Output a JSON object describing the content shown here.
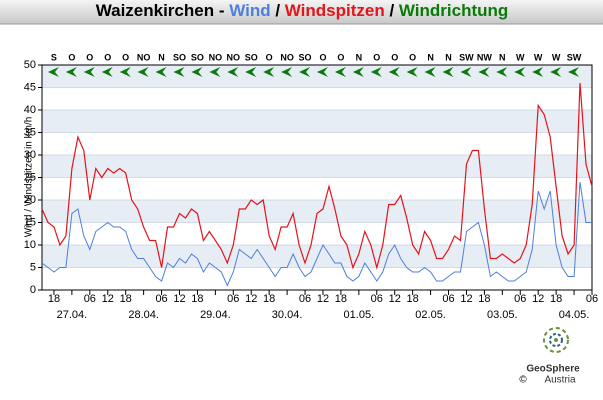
{
  "chart_data": {
    "type": "line",
    "title_prefix": "Waizenkirchen - ",
    "separator": " / ",
    "direction_name": "Windrichtung",
    "direction_color": "#0a7a0a",
    "ylabel": "Wind / Windspitzen in km/h",
    "ylim": [
      0,
      50
    ],
    "yticks": [
      0,
      5,
      10,
      15,
      20,
      25,
      30,
      35,
      40,
      45,
      50
    ],
    "grid": true,
    "categories": [
      null,
      null,
      "18",
      null,
      null,
      null,
      null,
      null,
      "06",
      null,
      null,
      "12",
      null,
      null,
      "18",
      null,
      null,
      null,
      null,
      null,
      "06",
      null,
      null,
      "12",
      null,
      null,
      "18",
      null,
      null,
      null,
      null,
      null,
      "06",
      null,
      null,
      "12",
      null,
      null,
      "18",
      null,
      null,
      null,
      null,
      null,
      "06",
      null,
      null,
      "12",
      null,
      null,
      "18",
      null,
      null,
      null,
      null,
      null,
      "06",
      null,
      null,
      "12",
      null,
      null,
      "18",
      null,
      null,
      null,
      null,
      null,
      "06",
      null,
      null,
      "12",
      null,
      null,
      "18",
      null,
      null,
      null,
      null,
      null,
      "06",
      null,
      null,
      "12",
      null,
      null,
      "18",
      null,
      null,
      null,
      null,
      null,
      "06"
    ],
    "dates": [
      null,
      null,
      null,
      null,
      null,
      "27.04.",
      null,
      null,
      null,
      null,
      null,
      null,
      null,
      null,
      null,
      null,
      null,
      "28.04.",
      null,
      null,
      null,
      null,
      null,
      null,
      null,
      null,
      null,
      null,
      null,
      "29.04.",
      null,
      null,
      null,
      null,
      null,
      null,
      null,
      null,
      null,
      null,
      null,
      "30.04.",
      null,
      null,
      null,
      null,
      null,
      null,
      null,
      null,
      null,
      null,
      null,
      "01.05.",
      null,
      null,
      null,
      null,
      null,
      null,
      null,
      null,
      null,
      null,
      null,
      "02.05.",
      null,
      null,
      null,
      null,
      null,
      null,
      null,
      null,
      null,
      null,
      null,
      "03.05.",
      null,
      null,
      null,
      null,
      null,
      null,
      null,
      null,
      null,
      null,
      null,
      "04.05.",
      null,
      null,
      null
    ],
    "directions": [
      "S",
      "O",
      "O",
      "O",
      "O",
      "NO",
      "N",
      "SO",
      "SO",
      "NO",
      "NO",
      "SO",
      "O",
      "NO",
      "SO",
      "O",
      "O",
      "N",
      "O",
      "O",
      "O",
      "N",
      "N",
      "SW",
      "NW",
      "N",
      "W",
      "W",
      "W",
      "SW"
    ],
    "series": [
      {
        "name": "Wind",
        "color": "#4f7fdc",
        "values": [
          6,
          5,
          4,
          5,
          5,
          17,
          18,
          12,
          9,
          13,
          14,
          15,
          14,
          14,
          13,
          9,
          7,
          7,
          5,
          3,
          2,
          6,
          5,
          7,
          6,
          8,
          7,
          4,
          6,
          5,
          4,
          1,
          4,
          9,
          8,
          7,
          9,
          7,
          5,
          3,
          5,
          5,
          8,
          5,
          3,
          4,
          7,
          10,
          8,
          6,
          6,
          3,
          2,
          3,
          6,
          4,
          2,
          4,
          8,
          10,
          7,
          5,
          4,
          4,
          5,
          4,
          2,
          2,
          3,
          4,
          4,
          13,
          14,
          15,
          10,
          3,
          4,
          3,
          2,
          2,
          3,
          4,
          9,
          22,
          18,
          22,
          10,
          5,
          3,
          3,
          24,
          15,
          15
        ]
      },
      {
        "name": "Windspitzen",
        "color": "#e4141b",
        "values": [
          18,
          15,
          14,
          10,
          12,
          27,
          34,
          31,
          20,
          27,
          25,
          27,
          26,
          27,
          26,
          20,
          18,
          14,
          11,
          11,
          5,
          14,
          14,
          17,
          16,
          18,
          17,
          11,
          13,
          11,
          9,
          6,
          10,
          18,
          18,
          20,
          19,
          20,
          12,
          9,
          14,
          14,
          17,
          10,
          6,
          10,
          17,
          18,
          23,
          18,
          12,
          10,
          5,
          8,
          13,
          10,
          5,
          10,
          19,
          19,
          21,
          16,
          10,
          8,
          13,
          11,
          7,
          7,
          9,
          12,
          11,
          28,
          31,
          31,
          18,
          7,
          7,
          8,
          7,
          6,
          7,
          10,
          19,
          41,
          39,
          34,
          23,
          12,
          8,
          10,
          46,
          28,
          23
        ]
      }
    ],
    "logo": {
      "name": "GeoSphere",
      "subtitle": "Austria",
      "copyright": "©"
    }
  }
}
